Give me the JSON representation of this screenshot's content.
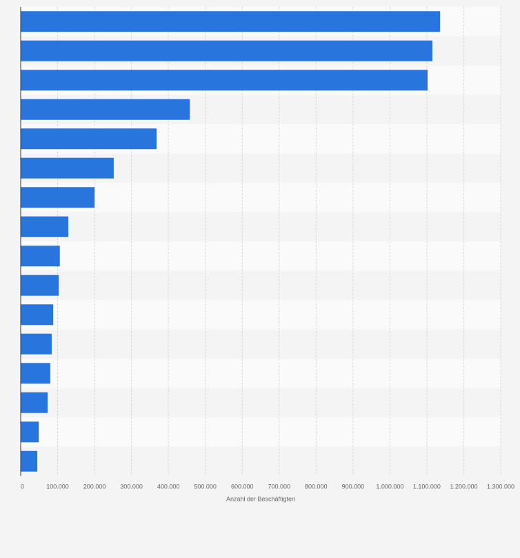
{
  "chart_data": {
    "type": "bar",
    "orientation": "horizontal",
    "xlabel": "Anzahl der Beschäftigten",
    "categories": [
      null,
      null,
      null,
      null,
      null,
      null,
      null,
      null,
      null,
      null,
      null,
      null,
      null,
      null,
      null,
      null
    ],
    "values": [
      1136000,
      1115000,
      1102000,
      458000,
      368000,
      252000,
      200000,
      129000,
      106000,
      103000,
      88000,
      84000,
      80000,
      73000,
      49000,
      45000
    ],
    "color": "#2876dd",
    "xlim": [
      0,
      1300000
    ],
    "xticks": [
      0,
      {
        "value": 100000,
        "label": "100.000"
      },
      {
        "value": 200000,
        "label": "200.000"
      },
      {
        "value": 300000,
        "label": "300.000"
      },
      {
        "value": 400000,
        "label": "400.000"
      },
      {
        "value": 500000,
        "label": "500.000"
      },
      {
        "value": 600000,
        "label": "600.000"
      },
      {
        "value": 700000,
        "label": "700.000"
      },
      {
        "value": 800000,
        "label": "800.000"
      },
      {
        "value": 900000,
        "label": "900.000"
      },
      {
        "value": 1000000,
        "label": "1.000.000"
      },
      {
        "value": 1100000,
        "label": "1.100.000"
      },
      {
        "value": 1200000,
        "label": "1.200.000"
      },
      {
        "value": 1300000,
        "label": "1.300.000"
      }
    ],
    "grid": true
  }
}
